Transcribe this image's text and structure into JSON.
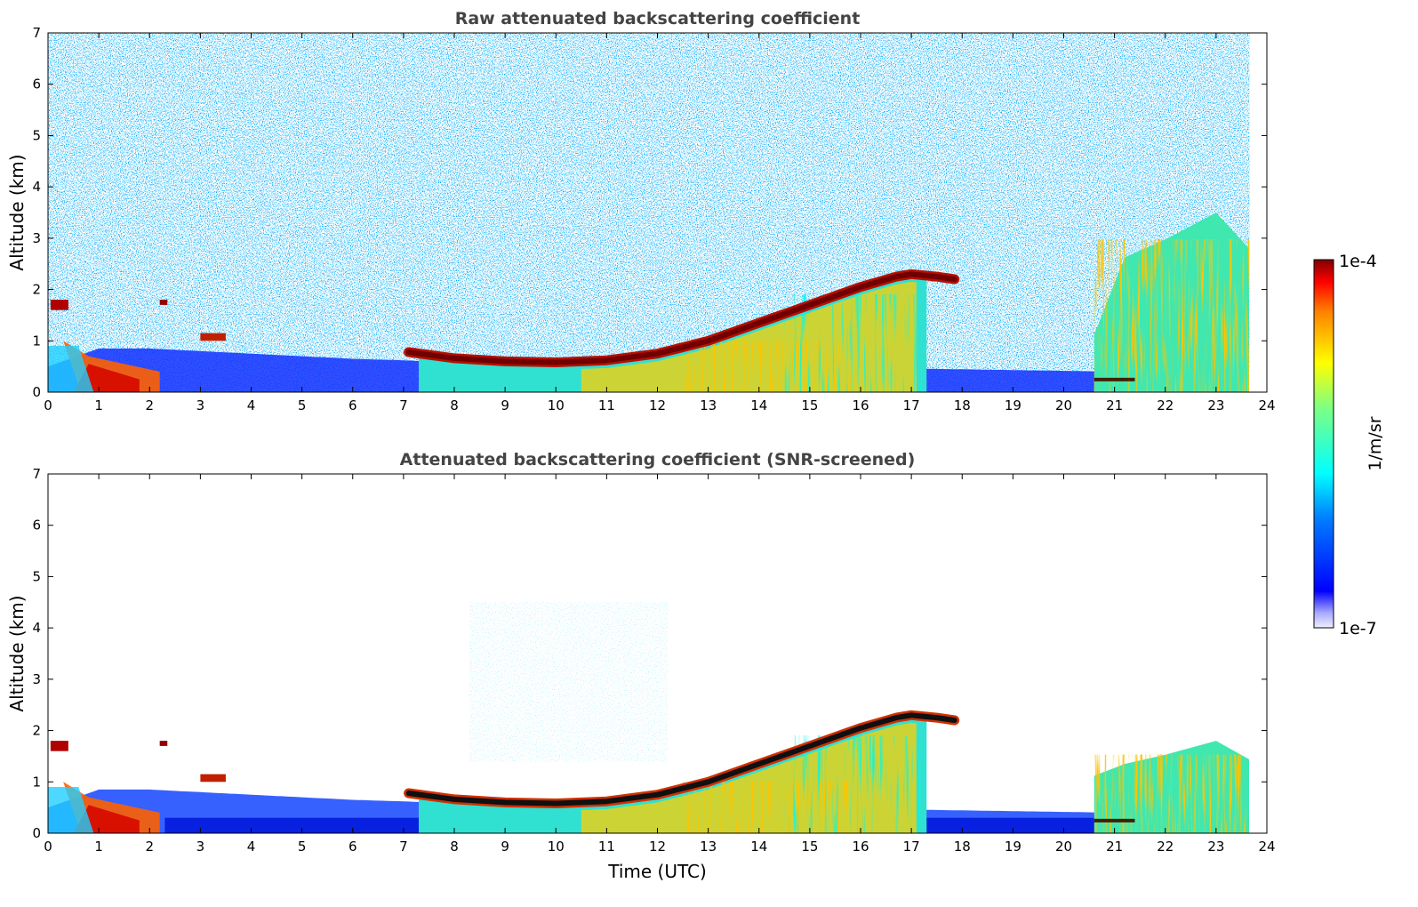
{
  "chart_data": [
    {
      "type": "heatmap",
      "title": "Raw attenuated backscattering coefficient",
      "xlabel": "",
      "ylabel": "Altitude (km)",
      "xlim": [
        0,
        24
      ],
      "ylim": [
        0,
        7
      ],
      "xticks": [
        "0",
        "1",
        "2",
        "3",
        "4",
        "5",
        "6",
        "7",
        "8",
        "9",
        "10",
        "11",
        "12",
        "13",
        "14",
        "15",
        "16",
        "17",
        "18",
        "19",
        "20",
        "21",
        "22",
        "23",
        "24"
      ],
      "yticks": [
        "0",
        "1",
        "2",
        "3",
        "4",
        "5",
        "6",
        "7"
      ],
      "data_end_time": 23.65,
      "background_noise": true,
      "boundary_layer_top": [
        [
          0,
          0.5
        ],
        [
          1,
          0.85
        ],
        [
          2,
          0.85
        ],
        [
          3,
          0.8
        ],
        [
          4,
          0.75
        ],
        [
          5,
          0.7
        ],
        [
          6,
          0.65
        ],
        [
          7,
          0.62
        ],
        [
          7.5,
          0.6
        ],
        [
          21,
          0.4
        ],
        [
          23.65,
          0.4
        ]
      ],
      "cloud_layer": [
        [
          7.1,
          0.78
        ],
        [
          8,
          0.66
        ],
        [
          9,
          0.6
        ],
        [
          10,
          0.58
        ],
        [
          11,
          0.62
        ],
        [
          12,
          0.75
        ],
        [
          13,
          1.0
        ],
        [
          14,
          1.35
        ],
        [
          15,
          1.7
        ],
        [
          16,
          2.05
        ],
        [
          16.7,
          2.25
        ],
        [
          17,
          2.3
        ],
        [
          17.5,
          2.25
        ],
        [
          17.85,
          2.2
        ]
      ],
      "mixed_layer_region": {
        "start": 7.3,
        "end": 17.3
      },
      "morning_layer": {
        "start": 0.3,
        "end": 1.9
      },
      "evening_convection": {
        "start": 20.6,
        "end": 23.65,
        "max_altitude": 3.5
      }
    },
    {
      "type": "heatmap",
      "title": "Attenuated backscattering coefficient (SNR-screened)",
      "xlabel": "Time (UTC)",
      "ylabel": "Altitude (km)",
      "xlim": [
        0,
        24
      ],
      "ylim": [
        0,
        7
      ],
      "xticks": [
        "0",
        "1",
        "2",
        "3",
        "4",
        "5",
        "6",
        "7",
        "8",
        "9",
        "10",
        "11",
        "12",
        "13",
        "14",
        "15",
        "16",
        "17",
        "18",
        "19",
        "20",
        "21",
        "22",
        "23",
        "24"
      ],
      "yticks": [
        "0",
        "1",
        "2",
        "3",
        "4",
        "5",
        "6",
        "7"
      ],
      "data_end_time": 23.65,
      "background_noise": false,
      "boundary_layer_top": [
        [
          0,
          0.5
        ],
        [
          1,
          0.85
        ],
        [
          2,
          0.85
        ],
        [
          3,
          0.8
        ],
        [
          4,
          0.75
        ],
        [
          5,
          0.7
        ],
        [
          6,
          0.65
        ],
        [
          7,
          0.62
        ],
        [
          7.5,
          0.6
        ],
        [
          21,
          0.4
        ],
        [
          23.65,
          0.4
        ]
      ],
      "cloud_layer": [
        [
          7.1,
          0.78
        ],
        [
          8,
          0.66
        ],
        [
          9,
          0.6
        ],
        [
          10,
          0.58
        ],
        [
          11,
          0.62
        ],
        [
          12,
          0.75
        ],
        [
          13,
          1.0
        ],
        [
          14,
          1.35
        ],
        [
          15,
          1.7
        ],
        [
          16,
          2.05
        ],
        [
          16.7,
          2.25
        ],
        [
          17,
          2.3
        ],
        [
          17.5,
          2.25
        ],
        [
          17.85,
          2.2
        ]
      ],
      "mixed_layer_region": {
        "start": 7.3,
        "end": 17.3
      },
      "morning_layer": {
        "start": 0.3,
        "end": 1.9
      },
      "evening_convection": {
        "start": 20.6,
        "end": 23.65,
        "max_altitude": 1.8
      }
    }
  ],
  "colorbar": {
    "label": "1/m/sr",
    "max_label": "1e-4",
    "min_label": "1e-7",
    "colormap": "jet",
    "scale": "log",
    "range": [
      1e-07,
      0.0001
    ]
  }
}
